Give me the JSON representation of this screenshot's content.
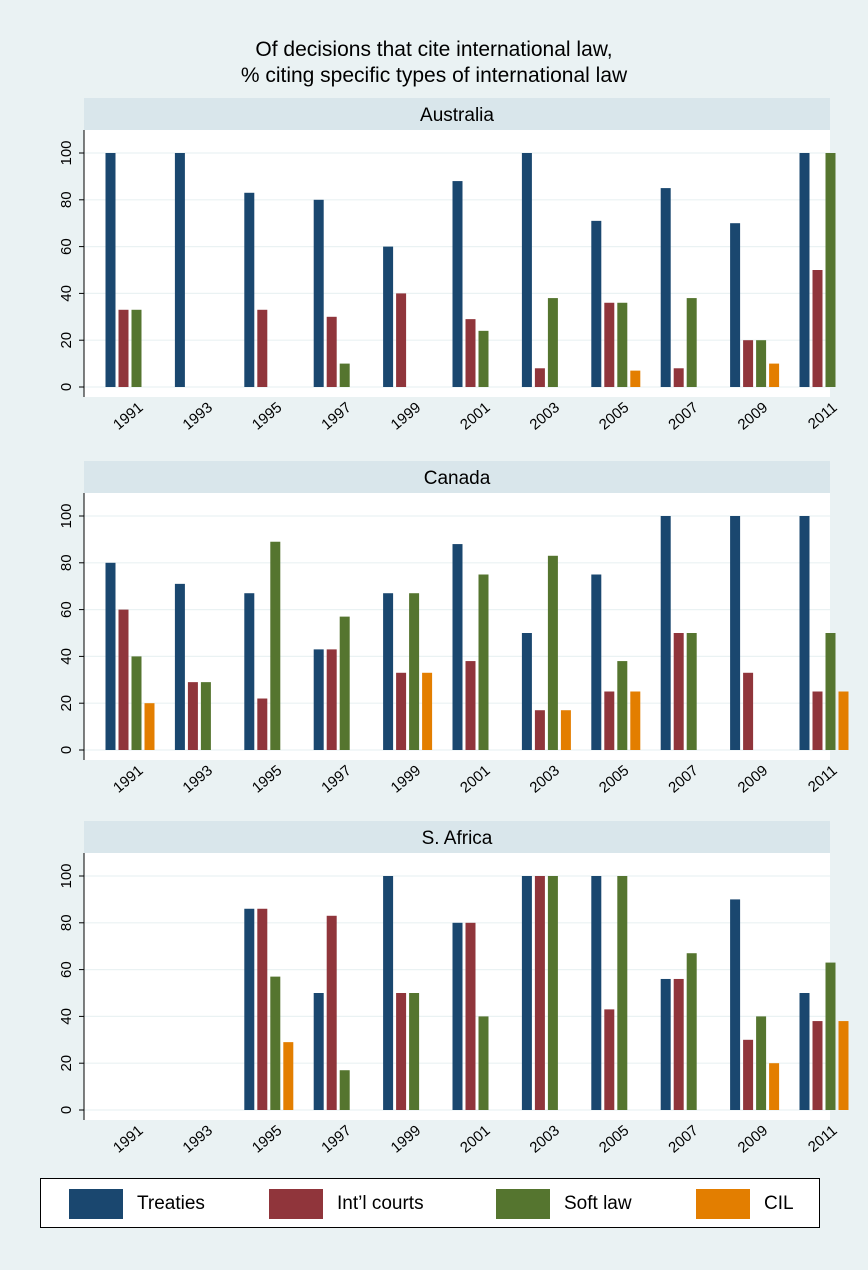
{
  "chart_data": {
    "type": "bar",
    "title": [
      "Of decisions that cite international law,",
      "% citing specific types of international law"
    ],
    "categories": [
      "1991",
      "1993",
      "1995",
      "1997",
      "1999",
      "2001",
      "2003",
      "2005",
      "2007",
      "2009",
      "2011"
    ],
    "yticks": [
      0,
      20,
      40,
      60,
      80,
      100
    ],
    "ylim": [
      0,
      110
    ],
    "grid": true,
    "legend_position": "bottom",
    "colors": {
      "Treaties": "#1a476f",
      "Int'l courts": "#90353b",
      "Soft law": "#55752f",
      "CIL": "#e37e00"
    },
    "panels": [
      {
        "name": "Australia",
        "series": [
          {
            "name": "Treaties",
            "values": [
              100,
              100,
              83,
              80,
              60,
              88,
              100,
              71,
              85,
              70,
              100
            ]
          },
          {
            "name": "Int'l courts",
            "values": [
              33,
              0,
              33,
              30,
              40,
              29,
              8,
              36,
              8,
              20,
              50
            ]
          },
          {
            "name": "Soft law",
            "values": [
              33,
              0,
              0,
              10,
              0,
              24,
              38,
              36,
              38,
              20,
              100
            ]
          },
          {
            "name": "CIL",
            "values": [
              0,
              0,
              0,
              0,
              0,
              0,
              0,
              7,
              0,
              10,
              0
            ]
          }
        ]
      },
      {
        "name": "Canada",
        "series": [
          {
            "name": "Treaties",
            "values": [
              80,
              71,
              67,
              43,
              67,
              88,
              50,
              75,
              100,
              100,
              100
            ]
          },
          {
            "name": "Int'l courts",
            "values": [
              60,
              29,
              22,
              43,
              33,
              38,
              17,
              25,
              50,
              33,
              25
            ]
          },
          {
            "name": "Soft law",
            "values": [
              40,
              29,
              89,
              57,
              67,
              75,
              83,
              38,
              50,
              0,
              50
            ]
          },
          {
            "name": "CIL",
            "values": [
              20,
              0,
              0,
              0,
              33,
              0,
              17,
              25,
              0,
              0,
              25
            ]
          }
        ]
      },
      {
        "name": "S. Africa",
        "series": [
          {
            "name": "Treaties",
            "values": [
              0,
              0,
              86,
              50,
              100,
              80,
              100,
              100,
              56,
              90,
              50
            ]
          },
          {
            "name": "Int'l courts",
            "values": [
              0,
              0,
              86,
              83,
              50,
              80,
              100,
              43,
              56,
              30,
              38
            ]
          },
          {
            "name": "Soft law",
            "values": [
              0,
              0,
              57,
              17,
              50,
              40,
              100,
              100,
              67,
              40,
              63
            ]
          },
          {
            "name": "CIL",
            "values": [
              0,
              0,
              29,
              0,
              0,
              0,
              0,
              0,
              0,
              20,
              38
            ]
          }
        ]
      }
    ]
  },
  "legend": {
    "items": [
      {
        "label": "Treaties",
        "color": "#1a476f"
      },
      {
        "label": "Int’l courts",
        "color": "#90353b"
      },
      {
        "label": "Soft law",
        "color": "#55752f"
      },
      {
        "label": "CIL",
        "color": "#e37e00"
      }
    ]
  }
}
